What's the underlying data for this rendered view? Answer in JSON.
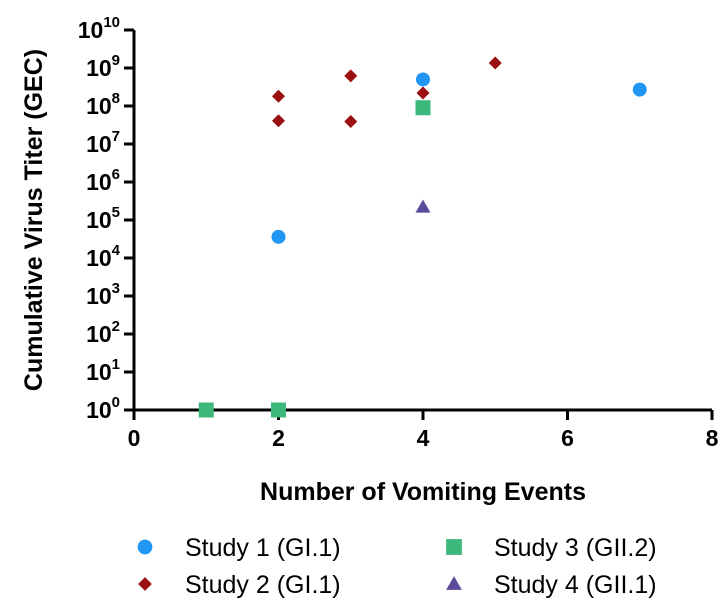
{
  "chart_data": {
    "type": "scatter",
    "xlabel": "Number of Vomiting Events",
    "ylabel": "Cumulative Virus Titer (GEC)",
    "xlim": [
      0,
      8
    ],
    "x_ticks": [
      0,
      2,
      4,
      6,
      8
    ],
    "ylim": [
      1,
      10000000000
    ],
    "y_scale": "log",
    "y_ticks": [
      {
        "base": "10",
        "exp": "0"
      },
      {
        "base": "10",
        "exp": "1"
      },
      {
        "base": "10",
        "exp": "2"
      },
      {
        "base": "10",
        "exp": "3"
      },
      {
        "base": "10",
        "exp": "4"
      },
      {
        "base": "10",
        "exp": "5"
      },
      {
        "base": "10",
        "exp": "6"
      },
      {
        "base": "10",
        "exp": "7"
      },
      {
        "base": "10",
        "exp": "8"
      },
      {
        "base": "10",
        "exp": "9"
      },
      {
        "base": "10",
        "exp": "10"
      }
    ],
    "grid": false,
    "legend_position": "bottom",
    "series": [
      {
        "name": "Study 1 (GI.1)",
        "marker": "circle",
        "color": "#2196F3",
        "points": [
          {
            "x": 1,
            "y": 1
          },
          {
            "x": 2,
            "y": 36000
          },
          {
            "x": 4,
            "y": 500000000
          },
          {
            "x": 7,
            "y": 270000000
          }
        ]
      },
      {
        "name": "Study 2 (GI.1)",
        "marker": "diamond",
        "color": "#9B1010",
        "points": [
          {
            "x": 2,
            "y": 180000000
          },
          {
            "x": 2,
            "y": 41000000
          },
          {
            "x": 3,
            "y": 620000000
          },
          {
            "x": 3,
            "y": 39000000
          },
          {
            "x": 4,
            "y": 220000000
          },
          {
            "x": 5,
            "y": 1350000000
          }
        ]
      },
      {
        "name": "Study 3 (GII.2)",
        "marker": "square",
        "color": "#3DB87C",
        "points": [
          {
            "x": 1,
            "y": 1
          },
          {
            "x": 2,
            "y": 1
          },
          {
            "x": 4,
            "y": 90000000
          }
        ]
      },
      {
        "name": "Study 4 (GII.1)",
        "marker": "triangle",
        "color": "#5C4A9A",
        "points": [
          {
            "x": 4,
            "y": 220000
          }
        ]
      }
    ]
  }
}
